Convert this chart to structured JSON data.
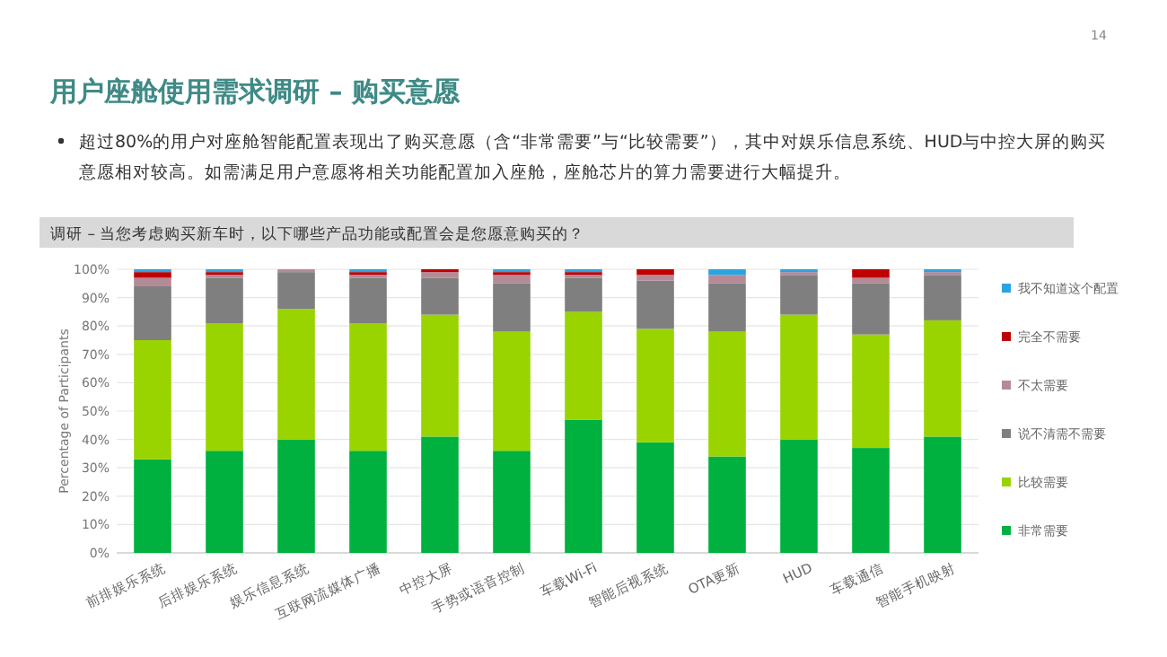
{
  "chart_data": {
    "type": "bar",
    "stacked": true,
    "title": "用户座舱使用需求调研 – 购买意愿",
    "subtitle": "调研 – 当您考虑购买新车时，以下哪些产品功能或配置会是您愿意购买的？",
    "annotations": [
      "超过80%的用户对座舱智能配置表现出了购买意愿（含“非常需要”与“比较需要”），其中对娱乐信息系统、HUD与中控大屏的购买意愿相对较高。如需满足用户意愿将相关功能配置加入座舱，座舱芯片的算力需要进行大幅提升。",
      "14"
    ],
    "ylabel": "Percentage of Participants",
    "categories": [
      "前排娱乐系统",
      "后排娱乐系统",
      "娱乐信息系统",
      "互联网流媒体广播",
      "中控大屏",
      "手势或语音控制",
      "车载Wi-Fi",
      "智能后视系统",
      "OTA更新",
      "HUD",
      "车载通信",
      "智能手机映射"
    ],
    "series": [
      {
        "name": "非常需要",
        "color": "#00b140",
        "values": [
          33,
          36,
          40,
          36,
          41,
          36,
          47,
          39,
          34,
          40,
          37,
          41
        ]
      },
      {
        "name": "比较需要",
        "color": "#99d400",
        "values": [
          42,
          45,
          46,
          45,
          43,
          42,
          38,
          40,
          44,
          44,
          40,
          41
        ]
      },
      {
        "name": "说不清需不需要",
        "color": "#7f7f7f",
        "values": [
          19,
          16,
          13,
          16,
          13,
          17,
          12,
          17,
          17,
          14,
          18,
          16
        ]
      },
      {
        "name": "不太需要",
        "color": "#b58a97",
        "values": [
          3,
          1,
          1,
          1,
          2,
          3,
          1,
          2,
          3,
          1,
          2,
          1
        ]
      },
      {
        "name": "完全不需要",
        "color": "#c00000",
        "values": [
          2,
          1,
          0,
          1,
          1,
          1,
          1,
          2,
          0,
          0,
          3,
          0
        ]
      },
      {
        "name": "我不知道这个配置",
        "color": "#2aa4e0",
        "values": [
          1,
          1,
          0,
          1,
          0,
          1,
          1,
          0,
          2,
          1,
          0,
          1
        ]
      }
    ],
    "ylim": [
      0,
      100
    ],
    "yticks": [
      {
        "value": 0,
        "label": "0%"
      },
      {
        "value": 10,
        "label": "10%"
      },
      {
        "value": 20,
        "label": "20%"
      },
      {
        "value": 30,
        "label": "30%"
      },
      {
        "value": 40,
        "label": "40%"
      },
      {
        "value": 50,
        "label": "50%"
      },
      {
        "value": 60,
        "label": "60%"
      },
      {
        "value": 70,
        "label": "70%"
      },
      {
        "value": 80,
        "label": "80%"
      },
      {
        "value": 90,
        "label": "90%"
      },
      {
        "value": 100,
        "label": "100%"
      }
    ],
    "grid": "y",
    "legend": "right"
  }
}
